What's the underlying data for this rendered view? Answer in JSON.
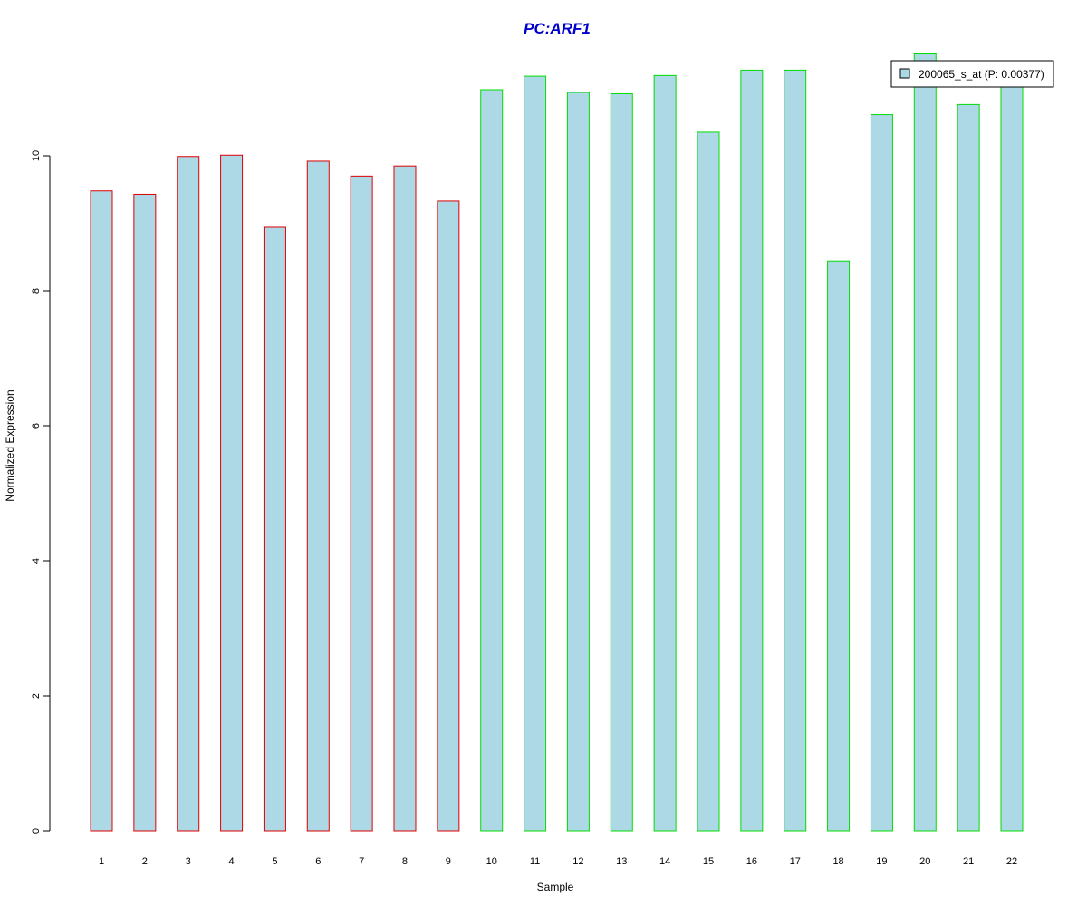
{
  "chart_data": {
    "type": "bar",
    "title": "PC:ARF1",
    "xlabel": "Sample",
    "ylabel": "Normalized Expression",
    "categories": [
      "1",
      "2",
      "3",
      "4",
      "5",
      "6",
      "7",
      "8",
      "9",
      "10",
      "11",
      "12",
      "13",
      "14",
      "15",
      "16",
      "17",
      "18",
      "19",
      "20",
      "21",
      "22"
    ],
    "series": [
      {
        "name": "200065_s_at (P: 0.00377)",
        "values": [
          9.48,
          9.43,
          9.99,
          10.01,
          8.94,
          9.92,
          9.7,
          9.85,
          9.33,
          10.98,
          11.18,
          10.94,
          10.92,
          11.19,
          10.35,
          11.27,
          11.27,
          8.44,
          10.61,
          11.51,
          10.76,
          11.09
        ]
      }
    ],
    "group_border_colors": [
      "#e00000",
      "#e00000",
      "#e00000",
      "#e00000",
      "#e00000",
      "#e00000",
      "#e00000",
      "#e00000",
      "#e00000",
      "#00dd00",
      "#00dd00",
      "#00dd00",
      "#00dd00",
      "#00dd00",
      "#00dd00",
      "#00dd00",
      "#00dd00",
      "#00dd00",
      "#00dd00",
      "#00dd00",
      "#00dd00",
      "#00dd00"
    ],
    "fill_color": "#add8e6",
    "title_color": "#0000cc",
    "y_ticks": [
      0,
      2,
      4,
      6,
      8,
      10
    ],
    "ylim": [
      0,
      11.6
    ],
    "legend_position": "top-right",
    "grid": false
  }
}
